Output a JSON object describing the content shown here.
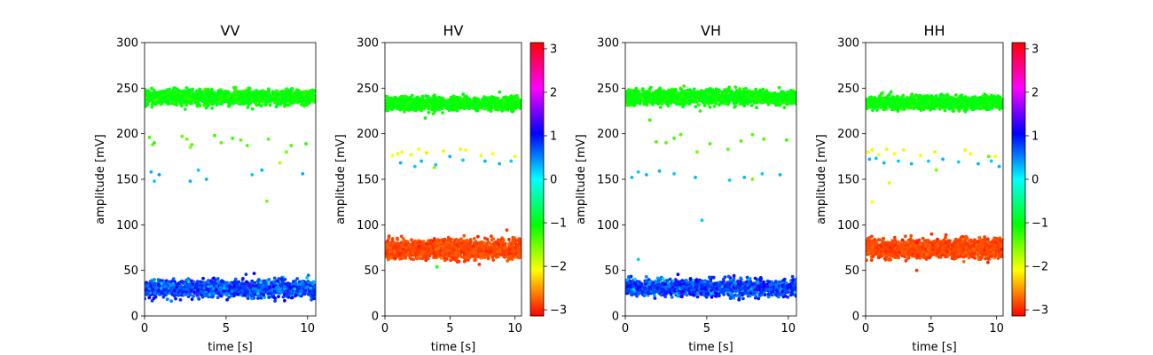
{
  "chart_data": [
    {
      "type": "scatter",
      "title": "VV",
      "xlabel": "time [s]",
      "ylabel": "amplitude [mV]",
      "xlim": [
        0,
        10.5
      ],
      "ylim": [
        0,
        300
      ],
      "xticks": [
        "0",
        "5",
        "10"
      ],
      "yticks": [
        "0",
        "50",
        "100",
        "150",
        "200",
        "250",
        "300"
      ],
      "colorbar": false,
      "bands": [
        {
          "y_center": 240,
          "y_spread": 7,
          "phase": -1.05,
          "phase_spread": 0.1,
          "count": 1500
        },
        {
          "y_center": 30,
          "y_spread": 8,
          "phase": 0.75,
          "phase_spread": 0.25,
          "count": 1500
        }
      ],
      "points": [
        {
          "t": 0.3,
          "amp": 196,
          "phase": -1.3
        },
        {
          "t": 0.5,
          "amp": 188,
          "phase": -1.4
        },
        {
          "t": 0.6,
          "amp": 190,
          "phase": -1.2
        },
        {
          "t": 2.3,
          "amp": 197,
          "phase": -1.4
        },
        {
          "t": 2.6,
          "amp": 194,
          "phase": -1.5
        },
        {
          "t": 2.8,
          "amp": 185,
          "phase": -1.6
        },
        {
          "t": 2.9,
          "amp": 188,
          "phase": -1.3
        },
        {
          "t": 4.3,
          "amp": 198,
          "phase": -1.3
        },
        {
          "t": 4.7,
          "amp": 190,
          "phase": -1.4
        },
        {
          "t": 5.4,
          "amp": 195,
          "phase": -1.2
        },
        {
          "t": 5.9,
          "amp": 193,
          "phase": -1.4
        },
        {
          "t": 6.3,
          "amp": 187,
          "phase": -1.3
        },
        {
          "t": 7.6,
          "amp": 194,
          "phase": -1.4
        },
        {
          "t": 9.0,
          "amp": 187,
          "phase": -1.3
        },
        {
          "t": 9.9,
          "amp": 189,
          "phase": -1.2
        },
        {
          "t": 8.3,
          "amp": 168,
          "phase": -1.8
        },
        {
          "t": 8.7,
          "amp": 180,
          "phase": -1.5
        },
        {
          "t": 0.4,
          "amp": 158,
          "phase": 0.3
        },
        {
          "t": 0.6,
          "amp": 148,
          "phase": 0.2
        },
        {
          "t": 0.9,
          "amp": 155,
          "phase": 0.4
        },
        {
          "t": 2.8,
          "amp": 148,
          "phase": 0.3
        },
        {
          "t": 3.3,
          "amp": 160,
          "phase": 0.2
        },
        {
          "t": 3.8,
          "amp": 150,
          "phase": 0.3
        },
        {
          "t": 6.6,
          "amp": 155,
          "phase": 0.2
        },
        {
          "t": 7.2,
          "amp": 160,
          "phase": 0.3
        },
        {
          "t": 9.7,
          "amp": 156,
          "phase": 0.3
        },
        {
          "t": 7.5,
          "amp": 126,
          "phase": -1.5
        }
      ]
    },
    {
      "type": "scatter",
      "title": "HV",
      "xlabel": "time [s]",
      "ylabel": "amplitude [mV]",
      "xlim": [
        0,
        10.5
      ],
      "ylim": [
        0,
        300
      ],
      "xticks": [
        "0",
        "5",
        "10"
      ],
      "yticks": [
        "0",
        "50",
        "100",
        "150",
        "200",
        "250",
        "300"
      ],
      "colorbar": true,
      "colorbar_ticks": [
        "3",
        "2",
        "1",
        "0",
        "−1",
        "−2",
        "−3"
      ],
      "bands": [
        {
          "y_center": 233,
          "y_spread": 6,
          "phase": -1.05,
          "phase_spread": 0.08,
          "count": 1400
        },
        {
          "y_center": 73,
          "y_spread": 9,
          "phase": -2.85,
          "phase_spread": 0.08,
          "count": 1500
        }
      ],
      "points": [
        {
          "t": 0.6,
          "amp": 176,
          "phase": -2.1
        },
        {
          "t": 1.0,
          "amp": 178,
          "phase": -2.0
        },
        {
          "t": 1.3,
          "amp": 180,
          "phase": -2.1
        },
        {
          "t": 2.0,
          "amp": 177,
          "phase": -2.0
        },
        {
          "t": 2.6,
          "amp": 183,
          "phase": -2.1
        },
        {
          "t": 3.2,
          "amp": 179,
          "phase": -2.2
        },
        {
          "t": 4.5,
          "amp": 181,
          "phase": -2.0
        },
        {
          "t": 5.8,
          "amp": 183,
          "phase": -2.0
        },
        {
          "t": 6.2,
          "amp": 182,
          "phase": -2.1
        },
        {
          "t": 7.4,
          "amp": 176,
          "phase": -2.0
        },
        {
          "t": 8.3,
          "amp": 178,
          "phase": -2.1
        },
        {
          "t": 10.0,
          "amp": 175,
          "phase": -2.0
        },
        {
          "t": 1.2,
          "amp": 168,
          "phase": 0.3
        },
        {
          "t": 2.3,
          "amp": 164,
          "phase": 0.2
        },
        {
          "t": 2.8,
          "amp": 170,
          "phase": 0.3
        },
        {
          "t": 3.9,
          "amp": 166,
          "phase": 0.2
        },
        {
          "t": 5.0,
          "amp": 175,
          "phase": 0.3
        },
        {
          "t": 6.0,
          "amp": 171,
          "phase": 0.2
        },
        {
          "t": 7.7,
          "amp": 170,
          "phase": 0.3
        },
        {
          "t": 8.8,
          "amp": 167,
          "phase": 0.3
        },
        {
          "t": 9.7,
          "amp": 170,
          "phase": 0.2
        },
        {
          "t": 3.8,
          "amp": 163,
          "phase": -1.6
        },
        {
          "t": 1.5,
          "amp": 224,
          "phase": -1.2
        },
        {
          "t": 4.0,
          "amp": 54,
          "phase": -1.2
        }
      ]
    },
    {
      "type": "scatter",
      "title": "VH",
      "xlabel": "time [s]",
      "ylabel": "amplitude [mV]",
      "xlim": [
        0,
        10.5
      ],
      "ylim": [
        0,
        300
      ],
      "xticks": [
        "0",
        "5",
        "10"
      ],
      "yticks": [
        "0",
        "50",
        "100",
        "150",
        "200",
        "250",
        "300"
      ],
      "colorbar": false,
      "bands": [
        {
          "y_center": 240,
          "y_spread": 7,
          "phase": -1.05,
          "phase_spread": 0.08,
          "count": 1500
        },
        {
          "y_center": 31,
          "y_spread": 8,
          "phase": 0.8,
          "phase_spread": 0.25,
          "count": 1500
        }
      ],
      "points": [
        {
          "t": 1.9,
          "amp": 191,
          "phase": -1.3
        },
        {
          "t": 2.5,
          "amp": 190,
          "phase": -1.4
        },
        {
          "t": 3.0,
          "amp": 195,
          "phase": -1.3
        },
        {
          "t": 3.4,
          "amp": 199,
          "phase": -1.4
        },
        {
          "t": 4.4,
          "amp": 180,
          "phase": -1.5
        },
        {
          "t": 5.2,
          "amp": 189,
          "phase": -1.3
        },
        {
          "t": 6.3,
          "amp": 183,
          "phase": -1.4
        },
        {
          "t": 7.1,
          "amp": 192,
          "phase": -1.3
        },
        {
          "t": 7.8,
          "amp": 199,
          "phase": -1.4
        },
        {
          "t": 8.5,
          "amp": 194,
          "phase": -1.3
        },
        {
          "t": 9.9,
          "amp": 193,
          "phase": -1.2
        },
        {
          "t": 1.5,
          "amp": 215,
          "phase": -1.2
        },
        {
          "t": 0.4,
          "amp": 152,
          "phase": 0.3
        },
        {
          "t": 0.8,
          "amp": 158,
          "phase": 0.2
        },
        {
          "t": 1.3,
          "amp": 155,
          "phase": 0.3
        },
        {
          "t": 2.1,
          "amp": 159,
          "phase": 0.3
        },
        {
          "t": 3.0,
          "amp": 156,
          "phase": 0.2
        },
        {
          "t": 4.3,
          "amp": 152,
          "phase": 0.3
        },
        {
          "t": 6.4,
          "amp": 149,
          "phase": 0.2
        },
        {
          "t": 7.3,
          "amp": 152,
          "phase": 0.3
        },
        {
          "t": 8.4,
          "amp": 156,
          "phase": 0.2
        },
        {
          "t": 9.5,
          "amp": 155,
          "phase": 0.3
        },
        {
          "t": 7.8,
          "amp": 150,
          "phase": -1.5
        },
        {
          "t": 4.6,
          "amp": 225,
          "phase": -1.2
        },
        {
          "t": 4.7,
          "amp": 105,
          "phase": 0.2
        },
        {
          "t": 0.8,
          "amp": 62,
          "phase": 0.2
        }
      ]
    },
    {
      "type": "scatter",
      "title": "HH",
      "xlabel": "time [s]",
      "ylabel": "amplitude [mV]",
      "xlim": [
        0,
        10.5
      ],
      "ylim": [
        0,
        300
      ],
      "xticks": [
        "0",
        "5",
        "10"
      ],
      "yticks": [
        "0",
        "50",
        "100",
        "150",
        "200",
        "250",
        "300"
      ],
      "colorbar": true,
      "colorbar_ticks": [
        "3",
        "2",
        "1",
        "0",
        "−1",
        "−2",
        "−3"
      ],
      "bands": [
        {
          "y_center": 234,
          "y_spread": 6,
          "phase": -1.05,
          "phase_spread": 0.08,
          "count": 1400
        },
        {
          "y_center": 74,
          "y_spread": 9,
          "phase": -2.85,
          "phase_spread": 0.08,
          "count": 1500
        }
      ],
      "points": [
        {
          "t": 0.2,
          "amp": 180,
          "phase": -2.1
        },
        {
          "t": 0.5,
          "amp": 182,
          "phase": -2.0
        },
        {
          "t": 1.0,
          "amp": 177,
          "phase": -2.1
        },
        {
          "t": 1.6,
          "amp": 183,
          "phase": -2.0
        },
        {
          "t": 2.2,
          "amp": 178,
          "phase": -2.1
        },
        {
          "t": 2.9,
          "amp": 182,
          "phase": -2.0
        },
        {
          "t": 4.2,
          "amp": 176,
          "phase": -2.1
        },
        {
          "t": 5.3,
          "amp": 180,
          "phase": -2.0
        },
        {
          "t": 7.6,
          "amp": 182,
          "phase": -2.0
        },
        {
          "t": 8.0,
          "amp": 178,
          "phase": -2.1
        },
        {
          "t": 9.9,
          "amp": 175,
          "phase": -2.1
        },
        {
          "t": 0.3,
          "amp": 172,
          "phase": 0.3
        },
        {
          "t": 0.8,
          "amp": 173,
          "phase": 0.2
        },
        {
          "t": 1.4,
          "amp": 168,
          "phase": 0.3
        },
        {
          "t": 2.5,
          "amp": 170,
          "phase": 0.2
        },
        {
          "t": 3.5,
          "amp": 167,
          "phase": 0.3
        },
        {
          "t": 4.8,
          "amp": 170,
          "phase": 0.2
        },
        {
          "t": 5.9,
          "amp": 172,
          "phase": 0.3
        },
        {
          "t": 7.1,
          "amp": 169,
          "phase": 0.2
        },
        {
          "t": 8.6,
          "amp": 167,
          "phase": 0.3
        },
        {
          "t": 9.6,
          "amp": 170,
          "phase": 0.2
        },
        {
          "t": 10.2,
          "amp": 164,
          "phase": 0.3
        },
        {
          "t": 5.4,
          "amp": 160,
          "phase": -1.6
        },
        {
          "t": 9.4,
          "amp": 175,
          "phase": -1.4
        },
        {
          "t": 0.5,
          "amp": 125,
          "phase": -2.1
        },
        {
          "t": 1.8,
          "amp": 146,
          "phase": -2.0
        },
        {
          "t": 3.9,
          "amp": 50,
          "phase": -2.9
        }
      ]
    }
  ]
}
